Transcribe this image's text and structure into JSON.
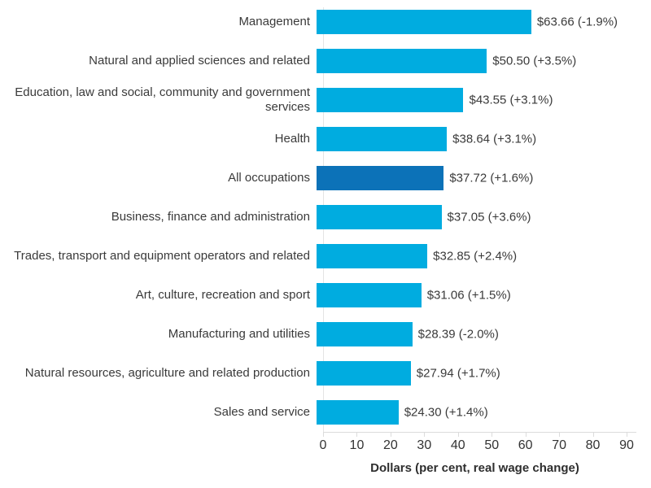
{
  "chart_data": {
    "type": "bar",
    "orientation": "horizontal",
    "title": "",
    "xlabel": "Dollars (per cent, real wage change)",
    "ylabel": "",
    "xlim": [
      0,
      90
    ],
    "ticks": [
      0,
      10,
      20,
      30,
      40,
      50,
      60,
      70,
      80,
      90
    ],
    "grid": false,
    "colors": {
      "bar_default": "#00ACE0",
      "bar_highlight": "#0C72B8",
      "axis": "#dcdcdc",
      "text": "#3a3a3a"
    },
    "items": [
      {
        "category": "Management",
        "value": 63.66,
        "change_pct": -1.9,
        "label": "$63.66 (-1.9%)",
        "highlight": false
      },
      {
        "category": "Natural and applied sciences and related",
        "value": 50.5,
        "change_pct": 3.5,
        "label": "$50.50 (+3.5%)",
        "highlight": false
      },
      {
        "category": "Education, law and social, community and government services",
        "value": 43.55,
        "change_pct": 3.1,
        "label": "$43.55 (+3.1%)",
        "highlight": false
      },
      {
        "category": "Health",
        "value": 38.64,
        "change_pct": 3.1,
        "label": "$38.64 (+3.1%)",
        "highlight": false
      },
      {
        "category": "All occupations",
        "value": 37.72,
        "change_pct": 1.6,
        "label": "$37.72 (+1.6%)",
        "highlight": true
      },
      {
        "category": "Business, finance and administration",
        "value": 37.05,
        "change_pct": 3.6,
        "label": "$37.05 (+3.6%)",
        "highlight": false
      },
      {
        "category": "Trades, transport and equipment operators and related",
        "value": 32.85,
        "change_pct": 2.4,
        "label": "$32.85 (+2.4%)",
        "highlight": false
      },
      {
        "category": "Art, culture, recreation and sport",
        "value": 31.06,
        "change_pct": 1.5,
        "label": "$31.06 (+1.5%)",
        "highlight": false
      },
      {
        "category": "Manufacturing and utilities",
        "value": 28.39,
        "change_pct": -2.0,
        "label": "$28.39 (-2.0%)",
        "highlight": false
      },
      {
        "category": "Natural resources, agriculture and related production",
        "value": 27.94,
        "change_pct": 1.7,
        "label": "$27.94 (+1.7%)",
        "highlight": false
      },
      {
        "category": "Sales and service",
        "value": 24.3,
        "change_pct": 1.4,
        "label": "$24.30 (+1.4%)",
        "highlight": false
      }
    ]
  }
}
